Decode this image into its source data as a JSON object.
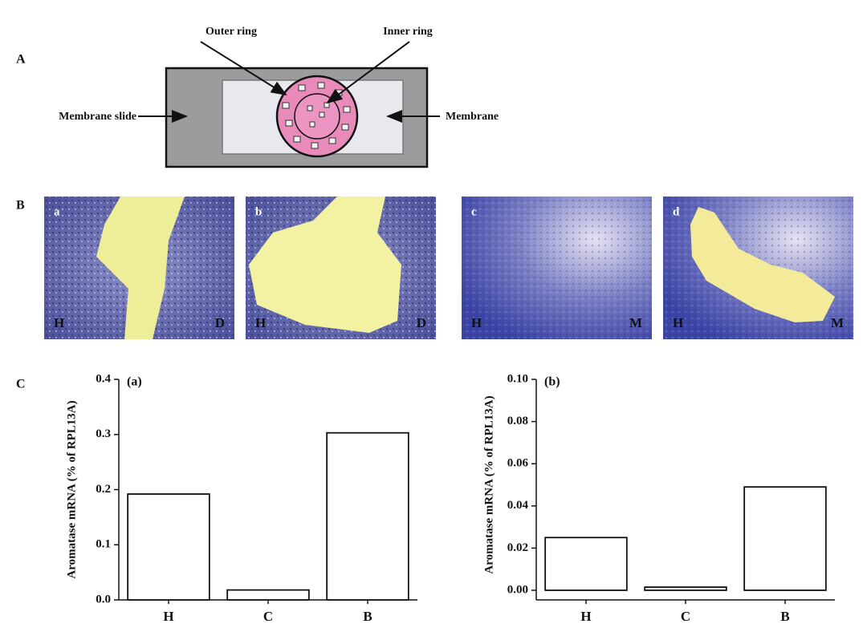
{
  "panel_labels": [
    "A",
    "B",
    "C"
  ],
  "diagram": {
    "outer_ring": "Outer ring",
    "inner_ring": "Inner ring",
    "membrane_slide": "Membrane slide",
    "membrane": "Membrane"
  },
  "micrographs": [
    {
      "label": "a",
      "left": "H",
      "right": "D"
    },
    {
      "label": "b",
      "left": "H",
      "right": "D"
    },
    {
      "label": "c",
      "left": "H",
      "right": "M"
    },
    {
      "label": "d",
      "left": "H",
      "right": "M"
    }
  ],
  "chart_data": [
    {
      "type": "bar",
      "title": "(a)",
      "y_label": "Aromatase mRNA (% of RPL13A)",
      "categories": [
        "H",
        "C",
        "B"
      ],
      "values": [
        0.192,
        0.018,
        0.303
      ],
      "ylim": [
        0,
        0.4
      ],
      "yticks": [
        {
          "value": 0,
          "label": "0.0"
        },
        0.1,
        0.2,
        0.3,
        0.4
      ],
      "color": "#ffffff"
    },
    {
      "type": "bar",
      "title": "(b)",
      "y_label": "Aromatase mRNA (% of RPL13A)",
      "categories": [
        "H",
        "C",
        "B"
      ],
      "values": [
        0.025,
        0.0015,
        0.049
      ],
      "ylim": [
        0,
        0.1
      ],
      "yticks": [
        {
          "value": 0,
          "label": "0.00"
        },
        0.02,
        0.04,
        0.06,
        0.08,
        {
          "value": 0.1,
          "label": "0.10"
        }
      ],
      "color": "#ffffff"
    }
  ]
}
